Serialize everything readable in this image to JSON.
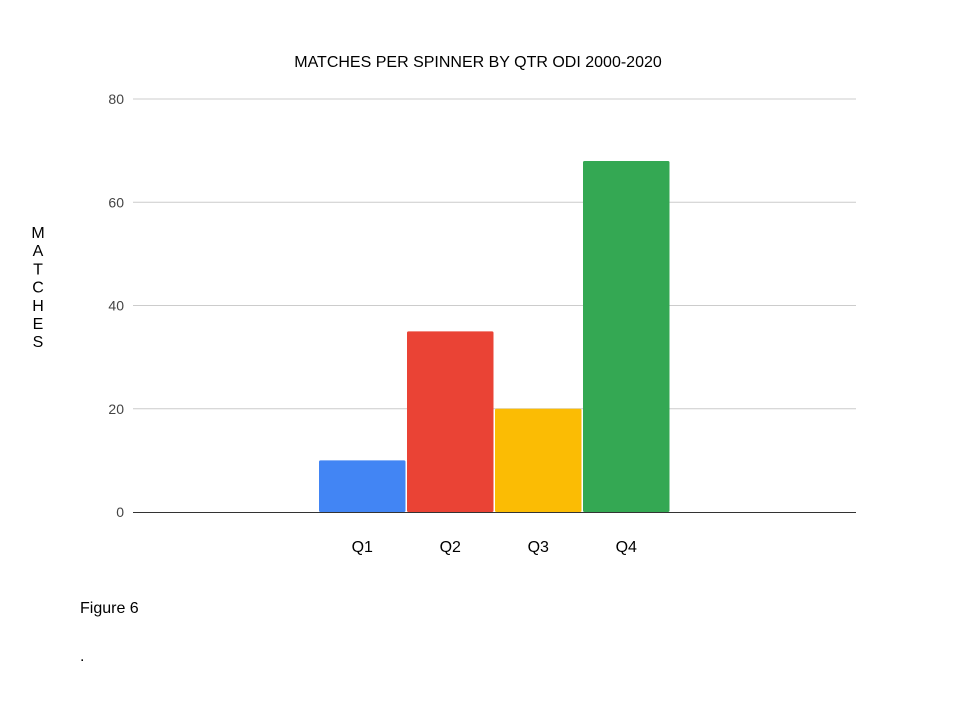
{
  "chart_data": {
    "type": "bar",
    "title": "MATCHES PER SPINNER BY QTR ODI 2000-2020",
    "ylabel": "MATCHES",
    "xlabel": "",
    "categories": [
      "Q1",
      "Q2",
      "Q3",
      "Q4"
    ],
    "values": [
      10,
      35,
      20,
      68
    ],
    "colors": [
      "#4285f4",
      "#ea4335",
      "#fbbc04",
      "#34a853"
    ],
    "ylim": [
      0,
      80
    ],
    "yticks": [
      0,
      20,
      40,
      60,
      80
    ],
    "grid": true,
    "legend": "none"
  },
  "caption": "Figure 6",
  "trailing_text": "."
}
